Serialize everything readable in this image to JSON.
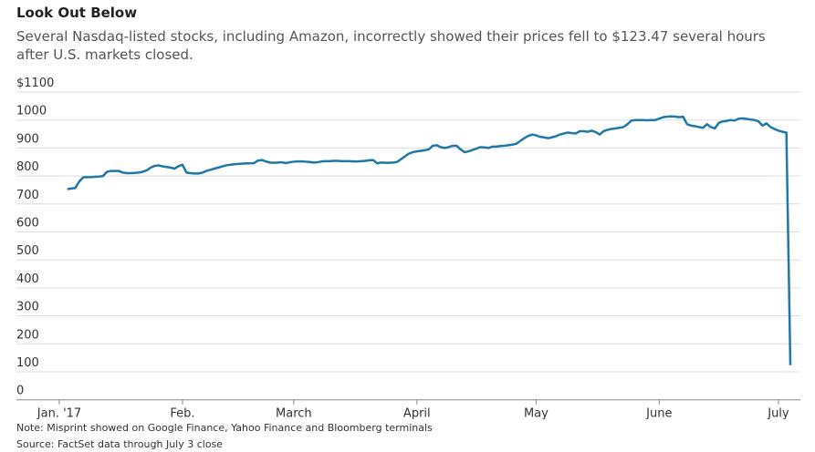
{
  "chart_data": {
    "type": "line",
    "title": "Look Out Below",
    "subtitle": "Several Nasdaq-listed stocks, including Amazon, incorrectly showed their prices fell to $123.47 several hours after U.S. markets closed.",
    "note": "Note: Misprint showed on Google Finance, Yahoo Finance and Bloomberg terminals",
    "source": "Source: FactSet data through July 3 close",
    "color": "#1f78a8",
    "grid": true,
    "ylim": [
      0,
      1100
    ],
    "yticks": [
      0,
      100,
      200,
      300,
      400,
      500,
      600,
      700,
      800,
      900,
      1000,
      {
        "value": 1100,
        "label": "$1100"
      }
    ],
    "categories": [
      "Jan. '17",
      null,
      null,
      null,
      null,
      null,
      null,
      null,
      null,
      null,
      null,
      null,
      null,
      null,
      null,
      null,
      null,
      null,
      null,
      null,
      null,
      null,
      null,
      null,
      null,
      null,
      null,
      null,
      null,
      null,
      null,
      "Feb.",
      null,
      null,
      null,
      null,
      null,
      null,
      null,
      null,
      null,
      null,
      null,
      null,
      null,
      null,
      null,
      null,
      null,
      null,
      null,
      null,
      null,
      null,
      null,
      null,
      null,
      null,
      null,
      "March",
      null,
      null,
      null,
      null,
      null,
      null,
      null,
      null,
      null,
      null,
      null,
      null,
      null,
      null,
      null,
      null,
      null,
      null,
      null,
      null,
      null,
      null,
      null,
      null,
      null,
      null,
      null,
      null,
      null,
      null,
      "April",
      null,
      null,
      null,
      null,
      null,
      null,
      null,
      null,
      null,
      null,
      null,
      null,
      null,
      null,
      null,
      null,
      null,
      null,
      null,
      null,
      null,
      null,
      null,
      null,
      null,
      null,
      null,
      null,
      null,
      "May",
      null,
      null,
      null,
      null,
      null,
      null,
      null,
      null,
      null,
      null,
      null,
      null,
      null,
      null,
      null,
      null,
      null,
      null,
      null,
      null,
      null,
      null,
      null,
      null,
      null,
      null,
      null,
      null,
      null,
      null,
      "June",
      null,
      null,
      null,
      null,
      null,
      null,
      null,
      null,
      null,
      null,
      null,
      null,
      null,
      null,
      null,
      null,
      null,
      null,
      null,
      null,
      null,
      null,
      null,
      null,
      null,
      null,
      null,
      null,
      null,
      "July",
      null,
      null,
      null
    ],
    "values": [
      null,
      null,
      753,
      755,
      757,
      780,
      795,
      796,
      796,
      797,
      798,
      800,
      815,
      818,
      818,
      818,
      812,
      810,
      810,
      811,
      812,
      815,
      820,
      830,
      836,
      838,
      834,
      832,
      830,
      826,
      835,
      840,
      812,
      810,
      809,
      809,
      812,
      818,
      822,
      826,
      830,
      834,
      838,
      840,
      842,
      843,
      844,
      845,
      845,
      846,
      855,
      857,
      852,
      848,
      847,
      848,
      849,
      846,
      849,
      851,
      852,
      852,
      851,
      850,
      848,
      849,
      852,
      853,
      853,
      854,
      854,
      853,
      853,
      853,
      852,
      852,
      853,
      854,
      856,
      857,
      845,
      848,
      847,
      847,
      848,
      850,
      860,
      870,
      880,
      885,
      888,
      890,
      892,
      895,
      908,
      910,
      903,
      900,
      903,
      908,
      908,
      895,
      885,
      888,
      893,
      898,
      903,
      902,
      900,
      905,
      905,
      907,
      908,
      910,
      912,
      915,
      925,
      935,
      943,
      948,
      945,
      940,
      938,
      935,
      938,
      942,
      948,
      952,
      955,
      953,
      952,
      960,
      960,
      958,
      962,
      957,
      948,
      960,
      965,
      968,
      970,
      972,
      975,
      985,
      998,
      1000,
      1000,
      1000,
      999,
      1000,
      1000,
      1005,
      1010,
      1012,
      1013,
      1012,
      1010,
      1012,
      985,
      980,
      978,
      975,
      972,
      985,
      975,
      970,
      990,
      995,
      997,
      1000,
      998,
      1005,
      1006,
      1004,
      1002,
      1000,
      995,
      980,
      988,
      975,
      968,
      962,
      958,
      955,
      123.47
    ]
  }
}
